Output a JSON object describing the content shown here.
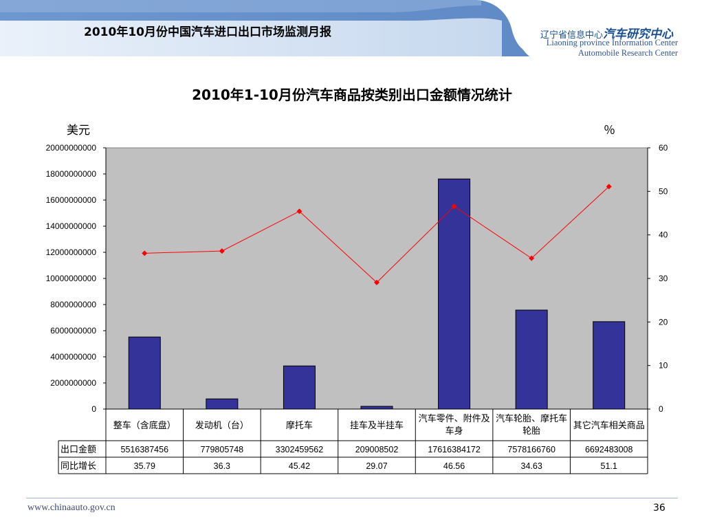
{
  "header": {
    "title": "2010年10月份中国汽车进口出口市场监测月报",
    "logo_cn_small": "辽宁省信息中心",
    "logo_cn_big": "汽车研究中心",
    "logo_en_line1": "Liaoning province Information Center",
    "logo_en_line2": "Automobile Research Center"
  },
  "chart_data": {
    "type": "bar",
    "title": "2010年1-10月份汽车商品按类别出口金额情况统计",
    "ylabel": "美元",
    "y2label": "％",
    "categories": [
      "整车（含底盘）",
      "发动机（台）",
      "摩托车",
      "挂车及半挂车",
      "汽车零件、附件及车身",
      "汽车轮胎、摩托车轮胎",
      "其它汽车相关商品"
    ],
    "series": [
      {
        "name": "出口金额",
        "type": "bar",
        "axis": "left",
        "values": [
          5516387456,
          779805748,
          3302459562,
          209008502,
          17616384172,
          7578166760,
          6692483008
        ],
        "labels": [
          "5516387456",
          "779805748",
          "3302459562",
          "209008502",
          "17616384172",
          "7578166760",
          "6692483008"
        ],
        "color": "#333399"
      },
      {
        "name": "同比增长",
        "type": "line",
        "axis": "right",
        "values": [
          35.79,
          36.3,
          45.42,
          29.07,
          46.56,
          34.63,
          51.1
        ],
        "labels": [
          "35.79",
          "36.3",
          "45.42",
          "29.07",
          "46.56",
          "34.63",
          "51.1"
        ],
        "color": "#ff0000"
      }
    ],
    "ylim": [
      0,
      20000000000
    ],
    "y2lim": [
      0,
      60
    ],
    "yticks": [
      "0",
      "2000000000",
      "4000000000",
      "6000000000",
      "8000000000",
      "10000000000",
      "12000000000",
      "14000000000",
      "16000000000",
      "18000000000",
      "20000000000"
    ],
    "y2ticks": [
      "0",
      "10",
      "20",
      "30",
      "40",
      "50",
      "60"
    ],
    "grid": false,
    "plot_background": "#c0c0c0",
    "legend": "data table"
  },
  "footer": {
    "url": "www.chinaauto.gov.cn",
    "page": "36"
  }
}
